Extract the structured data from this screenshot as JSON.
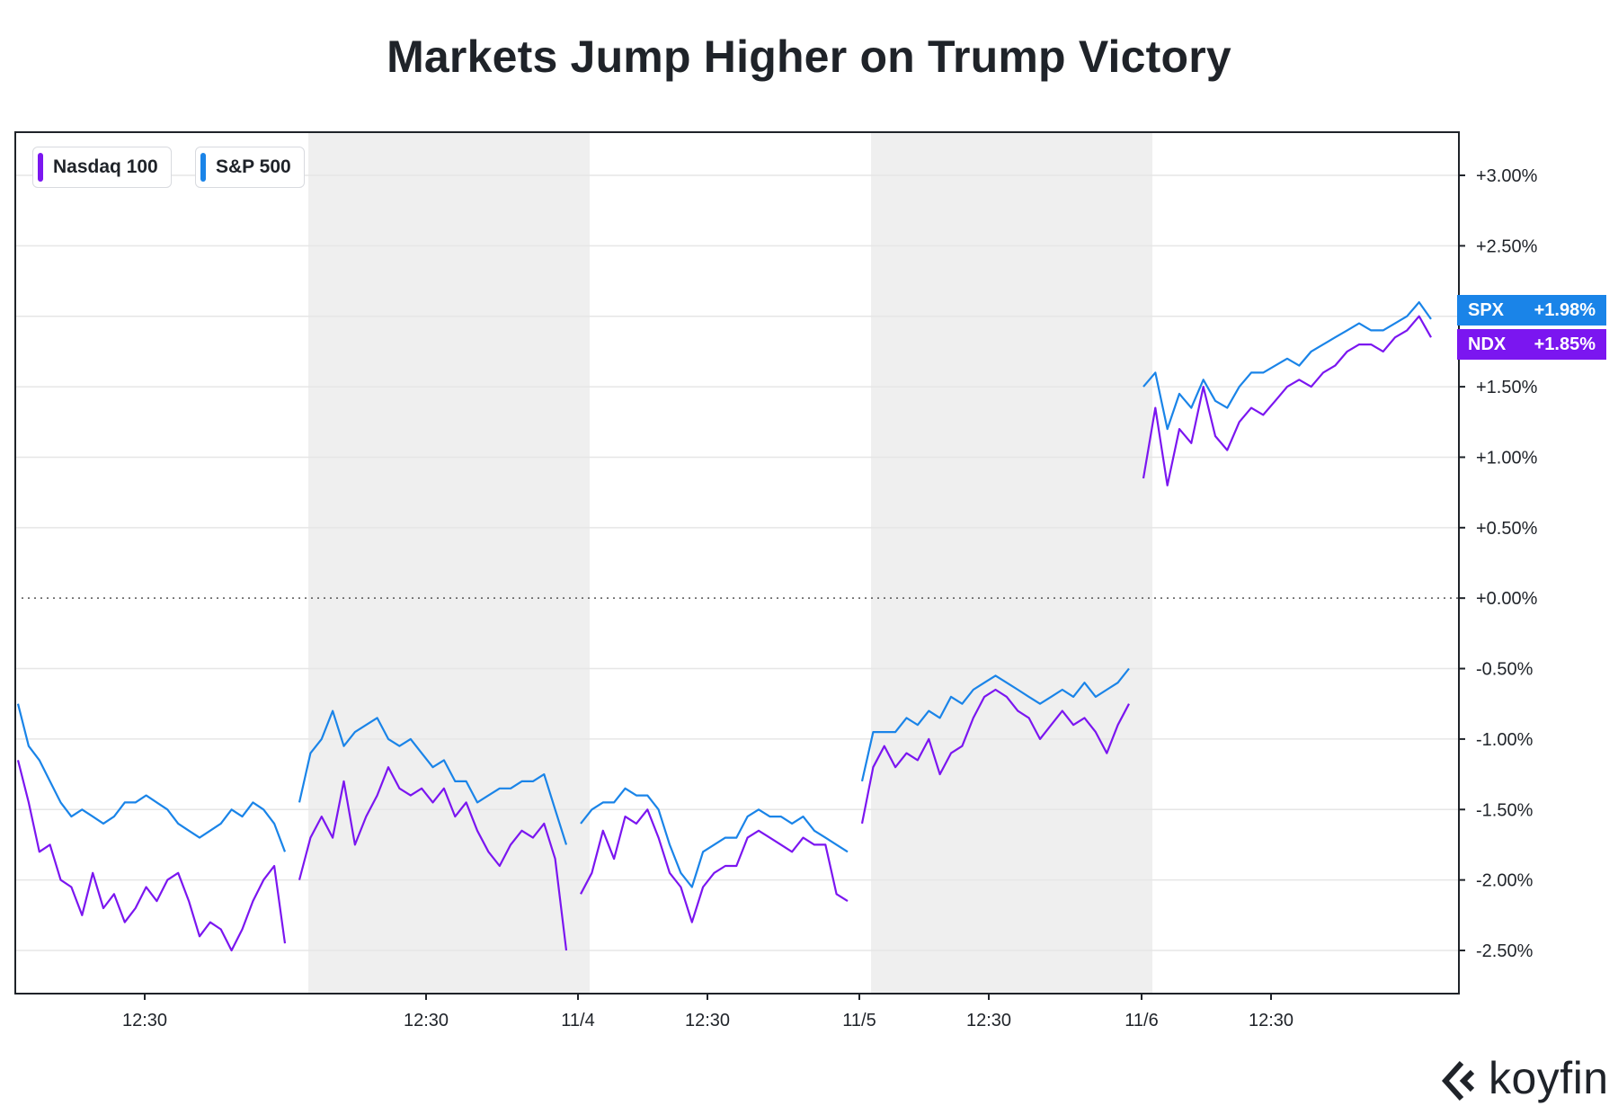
{
  "chart_data": {
    "type": "line",
    "title": "Markets Jump Higher on Trump Victory",
    "y_unit": "%",
    "ylim": [
      -2.8,
      3.3
    ],
    "y_ticks": [
      "+3.00%",
      "+2.50%",
      "+2.00%",
      "+1.50%",
      "+1.00%",
      "+0.50%",
      "+0.00%",
      "-0.50%",
      "-1.00%",
      "-1.50%",
      "-2.00%",
      "-2.50%"
    ],
    "y_tick_values": [
      3.0,
      2.5,
      2.0,
      1.5,
      1.0,
      0.5,
      0.0,
      -0.5,
      -1.0,
      -1.5,
      -2.0,
      -2.5
    ],
    "x_ticks": [
      "12:30",
      "12:30",
      "11/4",
      "12:30",
      "11/5",
      "12:30",
      "11/6",
      "12:30"
    ],
    "grid": true,
    "legend_position": "top-left",
    "shaded_sessions": [
      2,
      4
    ],
    "series": [
      {
        "name": "Nasdaq 100",
        "symbol": "NDX",
        "color": "#7b16f0",
        "last_label": "+1.85%",
        "last_value": 1.85,
        "sessions": [
          [
            -1.15,
            -1.45,
            -1.8,
            -1.75,
            -2.0,
            -2.05,
            -2.25,
            -1.95,
            -2.2,
            -2.1,
            -2.3,
            -2.2,
            -2.05,
            -2.15,
            -2.0,
            -1.95,
            -2.15,
            -2.4,
            -2.3,
            -2.35,
            -2.5,
            -2.35,
            -2.15,
            -2.0,
            -1.9,
            -2.45
          ],
          [
            -2.0,
            -1.7,
            -1.55,
            -1.7,
            -1.3,
            -1.75,
            -1.55,
            -1.4,
            -1.2,
            -1.35,
            -1.4,
            -1.35,
            -1.45,
            -1.35,
            -1.55,
            -1.45,
            -1.65,
            -1.8,
            -1.9,
            -1.75,
            -1.65,
            -1.7,
            -1.6,
            -1.85,
            -2.5
          ],
          [
            -2.1,
            -1.95,
            -1.65,
            -1.85,
            -1.55,
            -1.6,
            -1.5,
            -1.7,
            -1.95,
            -2.05,
            -2.3,
            -2.05,
            -1.95,
            -1.9,
            -1.9,
            -1.7,
            -1.65,
            -1.7,
            -1.75,
            -1.8,
            -1.7,
            -1.75,
            -1.75,
            -2.1,
            -2.15
          ],
          [
            -1.6,
            -1.2,
            -1.05,
            -1.2,
            -1.1,
            -1.15,
            -1.0,
            -1.25,
            -1.1,
            -1.05,
            -0.85,
            -0.7,
            -0.65,
            -0.7,
            -0.8,
            -0.85,
            -1.0,
            -0.9,
            -0.8,
            -0.9,
            -0.85,
            -0.95,
            -1.1,
            -0.9,
            -0.75
          ],
          [
            0.85,
            1.35,
            0.8,
            1.2,
            1.1,
            1.5,
            1.15,
            1.05,
            1.25,
            1.35,
            1.3,
            1.4,
            1.5,
            1.55,
            1.5,
            1.6,
            1.65,
            1.75,
            1.8,
            1.8,
            1.75,
            1.85,
            1.9,
            2.0,
            1.85
          ]
        ]
      },
      {
        "name": "S&P 500",
        "symbol": "SPX",
        "color": "#1a84e8",
        "last_label": "+1.98%",
        "last_value": 1.98,
        "sessions": [
          [
            -0.75,
            -1.05,
            -1.15,
            -1.3,
            -1.45,
            -1.55,
            -1.5,
            -1.55,
            -1.6,
            -1.55,
            -1.45,
            -1.45,
            -1.4,
            -1.45,
            -1.5,
            -1.6,
            -1.65,
            -1.7,
            -1.65,
            -1.6,
            -1.5,
            -1.55,
            -1.45,
            -1.5,
            -1.6,
            -1.8
          ],
          [
            -1.45,
            -1.1,
            -1.0,
            -0.8,
            -1.05,
            -0.95,
            -0.9,
            -0.85,
            -1.0,
            -1.05,
            -1.0,
            -1.1,
            -1.2,
            -1.15,
            -1.3,
            -1.3,
            -1.45,
            -1.4,
            -1.35,
            -1.35,
            -1.3,
            -1.3,
            -1.25,
            -1.5,
            -1.75
          ],
          [
            -1.6,
            -1.5,
            -1.45,
            -1.45,
            -1.35,
            -1.4,
            -1.4,
            -1.5,
            -1.75,
            -1.95,
            -2.05,
            -1.8,
            -1.75,
            -1.7,
            -1.7,
            -1.55,
            -1.5,
            -1.55,
            -1.55,
            -1.6,
            -1.55,
            -1.65,
            -1.7,
            -1.75,
            -1.8
          ],
          [
            -1.3,
            -0.95,
            -0.95,
            -0.95,
            -0.85,
            -0.9,
            -0.8,
            -0.85,
            -0.7,
            -0.75,
            -0.65,
            -0.6,
            -0.55,
            -0.6,
            -0.65,
            -0.7,
            -0.75,
            -0.7,
            -0.65,
            -0.7,
            -0.6,
            -0.7,
            -0.65,
            -0.6,
            -0.5
          ],
          [
            1.5,
            1.6,
            1.2,
            1.45,
            1.35,
            1.55,
            1.4,
            1.35,
            1.5,
            1.6,
            1.6,
            1.65,
            1.7,
            1.65,
            1.75,
            1.8,
            1.85,
            1.9,
            1.95,
            1.9,
            1.9,
            1.95,
            2.0,
            2.1,
            1.98
          ]
        ]
      }
    ]
  },
  "brand": {
    "name": "koyfin"
  }
}
